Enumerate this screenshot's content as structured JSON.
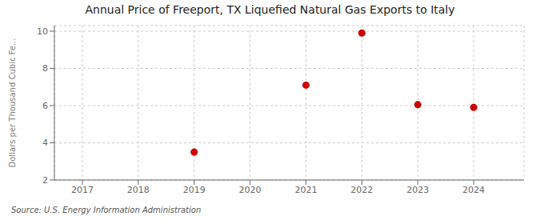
{
  "chart_data": {
    "type": "scatter",
    "title": "Annual Price of Freeport, TX Liquefied Natural Gas Exports to Italy",
    "ylabel": "Dollars per Thousand Cubic Fe...",
    "annotations": [
      "Source: U.S. Energy Information Administration"
    ],
    "x": [
      2019,
      2021,
      2022,
      2023,
      2024
    ],
    "values": [
      3.5,
      7.1,
      9.9,
      6.05,
      5.9
    ],
    "color": "#cc0000",
    "xlim": [
      2016.5,
      2024.9
    ],
    "xticks": [
      2017,
      2018,
      2019,
      2020,
      2021,
      2022,
      2023,
      2024
    ],
    "ylim": [
      2,
      10.3
    ],
    "yticks": [
      2,
      4,
      6,
      8,
      10
    ],
    "grid": true
  }
}
